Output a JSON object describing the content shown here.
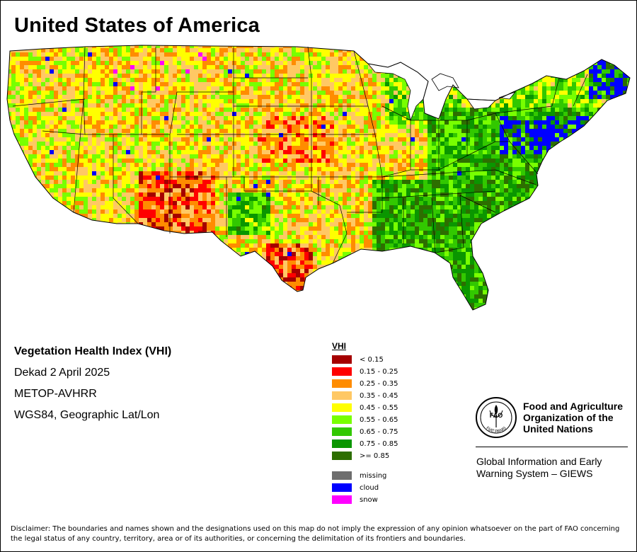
{
  "header": {
    "title": "United States of America"
  },
  "info": {
    "index_name": "Vegetation Health Index (VHI)",
    "period": "Dekad 2 April 2025",
    "sensor": "METOP-AVHRR",
    "projection": "WGS84, Geographic Lat/Lon"
  },
  "legend": {
    "title": "VHI",
    "classes": [
      {
        "label": "< 0.15",
        "color": "#a50000"
      },
      {
        "label": "0.15 - 0.25",
        "color": "#ff0000"
      },
      {
        "label": "0.25 - 0.35",
        "color": "#ff8c00"
      },
      {
        "label": "0.35 - 0.45",
        "color": "#ffc864"
      },
      {
        "label": "0.45 - 0.55",
        "color": "#ffff00"
      },
      {
        "label": "0.55 - 0.65",
        "color": "#78ff00"
      },
      {
        "label": "0.65 - 0.75",
        "color": "#32c800"
      },
      {
        "label": "0.75 - 0.85",
        "color": "#0a9600"
      },
      {
        "label": ">= 0.85",
        "color": "#2d6e00"
      }
    ],
    "special": [
      {
        "label": "missing",
        "color": "#6e6e6e"
      },
      {
        "label": "cloud",
        "color": "#0000ff"
      },
      {
        "label": "snow",
        "color": "#ff00ff"
      }
    ]
  },
  "organization": {
    "name_line1": "Food and Agriculture",
    "name_line2": "Organization of the",
    "name_line3": "United Nations",
    "logo_text": "FAO",
    "logo_motto": "FIAT PANIS",
    "giews_line1": "Global Information and Early",
    "giews_line2": "Warning System – GIEWS"
  },
  "disclaimer": "Disclaimer: The boundaries and names shown and the designations used on this map do not imply the expression of any opinion whatsoever on the part of FAO concerning the legal status of any country, territory, area or of its authorities, or concerning the delimitation of its frontiers and boundaries."
}
